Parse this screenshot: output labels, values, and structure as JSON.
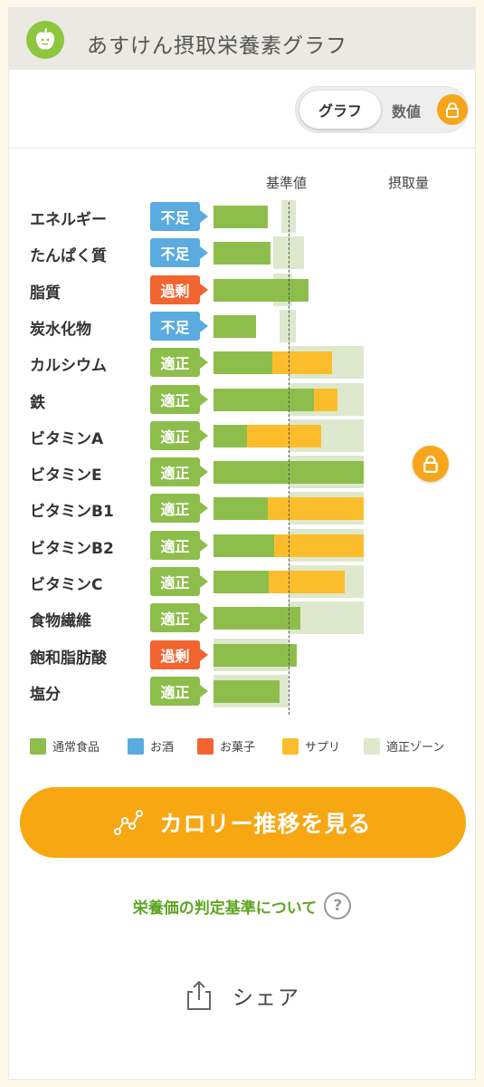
{
  "header": {
    "title": "あすけん摂取栄養素グラフ",
    "logo_icon": "apple-logo-icon",
    "logo_color": "#8dc63f"
  },
  "toggle": {
    "graph_label": "グラフ",
    "value_label": "数値",
    "lock_icon": "lock-icon",
    "selected": "グラフ"
  },
  "columns": {
    "baseline_label": "基準値",
    "intake_label": "摂取量"
  },
  "status_colors": {
    "不足": "#5aabdf",
    "過剰": "#f26430",
    "適正": "#8dbe4b"
  },
  "chart_data": {
    "type": "bar",
    "baseline": 100,
    "categories": [
      "エネルギー",
      "たんぱく質",
      "脂質",
      "炭水化物",
      "カルシウム",
      "鉄",
      "ビタミンA",
      "ビタミンE",
      "ビタミンB1",
      "ビタミンB2",
      "ビタミンC",
      "食物繊維",
      "飽和脂肪酸",
      "塩分"
    ],
    "status": [
      "不足",
      "不足",
      "過剰",
      "不足",
      "適正",
      "適正",
      "適正",
      "適正",
      "適正",
      "適正",
      "適正",
      "適正",
      "過剰",
      "適正"
    ],
    "series": [
      {
        "name": "通常食品",
        "values": [
          72,
          76,
          127,
          57,
          78,
          134,
          45,
          200,
          72,
          81,
          73,
          116,
          111,
          88
        ]
      },
      {
        "name": "サプリ",
        "values": [
          0,
          0,
          0,
          0,
          80,
          31,
          98,
          0,
          130,
          121,
          102,
          0,
          0,
          0
        ]
      }
    ],
    "zone_ranges": [
      [
        90,
        110
      ],
      [
        80,
        120
      ],
      [
        80,
        105
      ],
      [
        88,
        110
      ],
      [
        100,
        200
      ],
      [
        100,
        200
      ],
      [
        100,
        200
      ],
      [
        100,
        200
      ],
      [
        100,
        200
      ],
      [
        100,
        200
      ],
      [
        100,
        200
      ],
      [
        100,
        200
      ],
      [
        0,
        100
      ],
      [
        0,
        100
      ]
    ],
    "xlim": [
      0,
      200
    ]
  },
  "legend": [
    {
      "label": "通常食品",
      "color": "#8dbe4b"
    },
    {
      "label": "お酒",
      "color": "#5aabdf"
    },
    {
      "label": "お菓子",
      "color": "#f26430"
    },
    {
      "label": "サプリ",
      "color": "#fbbd2b"
    },
    {
      "label": "適正ゾーン",
      "color": "#dde8cd"
    }
  ],
  "float_lock_icon": "lock-icon",
  "cta": {
    "label": "カロリー推移を見る",
    "icon": "line-chart-icon"
  },
  "criteria": {
    "label": "栄養価の判定基準について",
    "help": "?"
  },
  "share": {
    "label": "シェア",
    "icon": "share-icon"
  }
}
